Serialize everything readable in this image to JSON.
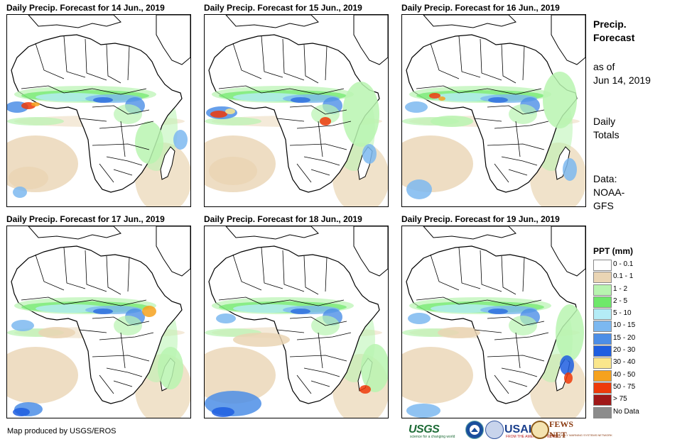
{
  "panels": [
    {
      "title": "Daily Precip. Forecast for 14 Jun., 2019"
    },
    {
      "title": "Daily Precip. Forecast for 15 Jun., 2019"
    },
    {
      "title": "Daily Precip. Forecast for 16 Jun., 2019"
    },
    {
      "title": "Daily Precip. Forecast for 17 Jun., 2019"
    },
    {
      "title": "Daily Precip. Forecast for 18 Jun., 2019"
    },
    {
      "title": "Daily Precip. Forecast for 19 Jun., 2019"
    }
  ],
  "sidebar": {
    "heading_line1": "Precip.",
    "heading_line2": "Forecast",
    "asof_line1": "as of",
    "asof_line2": "Jun 14, 2019",
    "daily_line1": "Daily",
    "daily_line2": "Totals",
    "data_line1": "Data:",
    "data_line2": "NOAA-",
    "data_line3": "GFS"
  },
  "legend": {
    "title": "PPT (mm)",
    "items": [
      {
        "label": "0 - 0.1",
        "color": "#ffffff"
      },
      {
        "label": "0.1 - 1",
        "color": "#ead5b4"
      },
      {
        "label": "1 - 2",
        "color": "#b8f4b0"
      },
      {
        "label": "2 - 5",
        "color": "#6ee86a"
      },
      {
        "label": "5 - 10",
        "color": "#b4ecf6"
      },
      {
        "label": "10 - 15",
        "color": "#7cb8f0"
      },
      {
        "label": "15 - 20",
        "color": "#4c8ee6"
      },
      {
        "label": "20 - 30",
        "color": "#1e5ee0"
      },
      {
        "label": "30 - 40",
        "color": "#fae68c"
      },
      {
        "label": "40 - 50",
        "color": "#f6a21e"
      },
      {
        "label": "50 - 75",
        "color": "#ee3a0a"
      },
      {
        "label": "> 75",
        "color": "#a01818"
      },
      {
        "label": "No Data",
        "color": "#8c8c8c"
      }
    ]
  },
  "footer": {
    "credit": "Map produced by USGS/EROS",
    "logo_usgs": "USGS",
    "logo_usgs_tag": "science for a changing world",
    "logo_usaid": "USAID",
    "logo_usaid_tag": "FROM THE AMERICAN PEOPLE",
    "logo_fews": "FEWS NET",
    "logo_fews_tag": "FAMINE EARLY WARNING SYSTEMS NETWORK"
  }
}
